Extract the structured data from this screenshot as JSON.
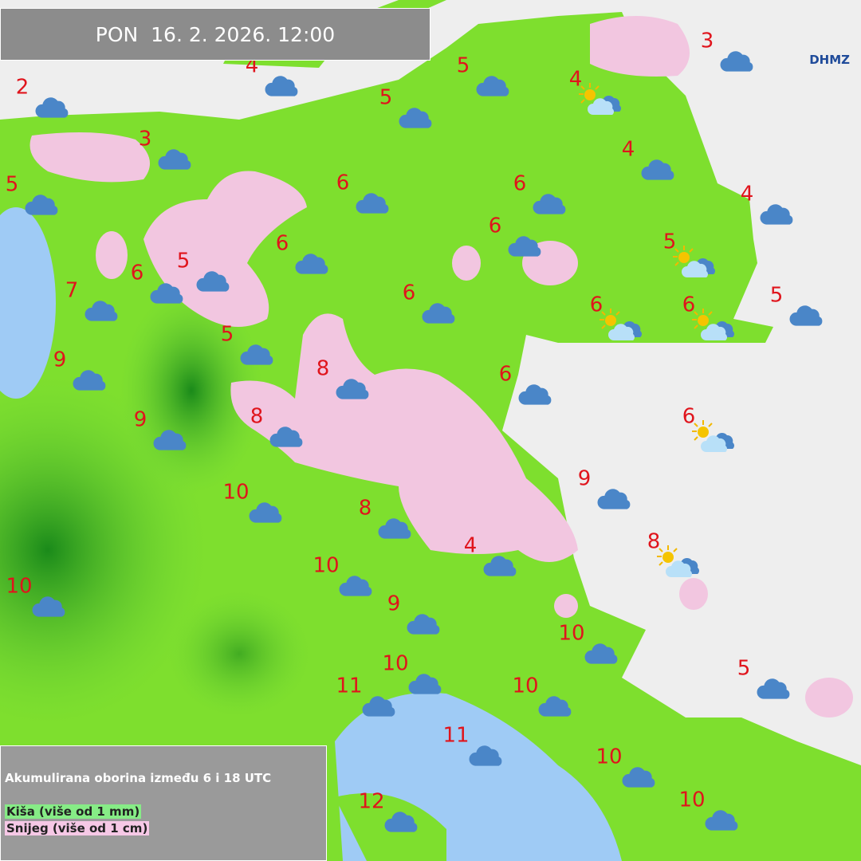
{
  "header": {
    "datetime": "PON  16. 2. 2026. 12:00",
    "logo": "DHMZ"
  },
  "legend": {
    "title": "Akumulirana oborina između 6 i 18 UTC",
    "items": [
      {
        "label": "Kiša (više od 1 mm)",
        "color": "#86ec86"
      },
      {
        "label": "Snijeg (više od 1 cm)",
        "color": "#f6c8e6"
      }
    ]
  },
  "stations": [
    {
      "temperature": 4,
      "weather": "cloudy"
    },
    {
      "temperature": 2,
      "weather": "cloudy"
    },
    {
      "temperature": 5,
      "weather": "cloudy"
    },
    {
      "temperature": 3,
      "weather": "cloudy"
    },
    {
      "temperature": 4,
      "weather": "partly-cloudy"
    },
    {
      "temperature": 5,
      "weather": "cloudy"
    },
    {
      "temperature": 3,
      "weather": "cloudy"
    },
    {
      "temperature": 4,
      "weather": "cloudy"
    },
    {
      "temperature": 5,
      "weather": "cloudy"
    },
    {
      "temperature": 6,
      "weather": "cloudy"
    },
    {
      "temperature": 6,
      "weather": "cloudy"
    },
    {
      "temperature": 4,
      "weather": "cloudy"
    },
    {
      "temperature": 6,
      "weather": "cloudy"
    },
    {
      "temperature": 6,
      "weather": "cloudy"
    },
    {
      "temperature": 5,
      "weather": "partly-cloudy"
    },
    {
      "temperature": 6,
      "weather": "cloudy"
    },
    {
      "temperature": 5,
      "weather": "cloudy"
    },
    {
      "temperature": 7,
      "weather": "cloudy"
    },
    {
      "temperature": 6,
      "weather": "cloudy"
    },
    {
      "temperature": 6,
      "weather": "partly-cloudy"
    },
    {
      "temperature": 6,
      "weather": "partly-cloudy"
    },
    {
      "temperature": 5,
      "weather": "cloudy"
    },
    {
      "temperature": 5,
      "weather": "cloudy"
    },
    {
      "temperature": 9,
      "weather": "cloudy"
    },
    {
      "temperature": 8,
      "weather": "cloudy"
    },
    {
      "temperature": 6,
      "weather": "cloudy"
    },
    {
      "temperature": 6,
      "weather": "partly-cloudy"
    },
    {
      "temperature": 9,
      "weather": "cloudy"
    },
    {
      "temperature": 8,
      "weather": "cloudy"
    },
    {
      "temperature": 9,
      "weather": "cloudy"
    },
    {
      "temperature": 10,
      "weather": "cloudy"
    },
    {
      "temperature": 8,
      "weather": "cloudy"
    },
    {
      "temperature": 4,
      "weather": "cloudy"
    },
    {
      "temperature": 8,
      "weather": "partly-cloudy"
    },
    {
      "temperature": 10,
      "weather": "cloudy"
    },
    {
      "temperature": 10,
      "weather": "cloudy"
    },
    {
      "temperature": 9,
      "weather": "cloudy"
    },
    {
      "temperature": 10,
      "weather": "cloudy"
    },
    {
      "temperature": 10,
      "weather": "cloudy"
    },
    {
      "temperature": 11,
      "weather": "cloudy"
    },
    {
      "temperature": 10,
      "weather": "cloudy"
    },
    {
      "temperature": 5,
      "weather": "cloudy"
    },
    {
      "temperature": 11,
      "weather": "cloudy"
    },
    {
      "temperature": 10,
      "weather": "cloudy"
    },
    {
      "temperature": 12,
      "weather": "cloudy"
    },
    {
      "temperature": 10,
      "weather": "cloudy"
    }
  ]
}
